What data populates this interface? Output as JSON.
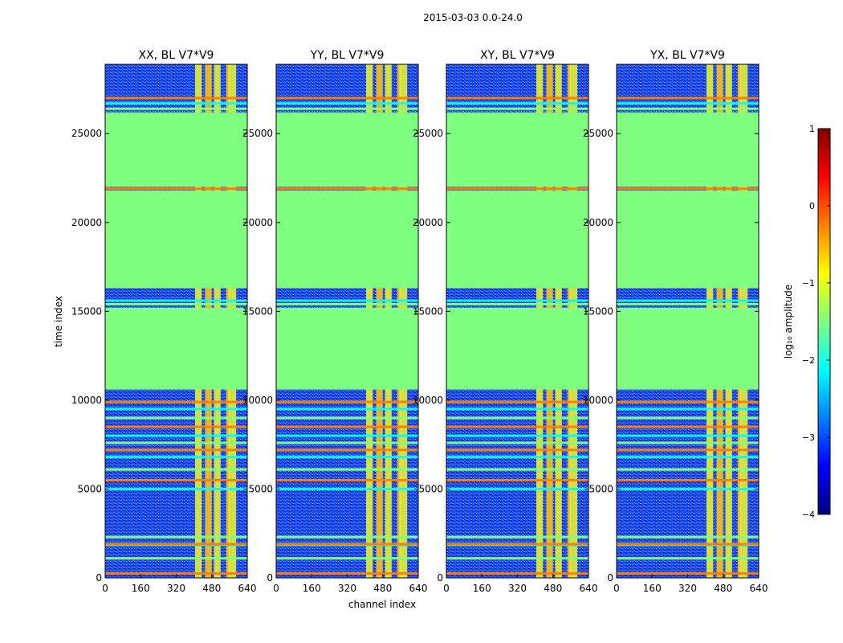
{
  "chart_data": {
    "type": "heatmap",
    "suptitle": "2015-03-03 0.0-24.0",
    "xlabel": "channel index",
    "ylabel": "time index",
    "xlim": [
      0,
      640
    ],
    "ylim": [
      0,
      28900
    ],
    "xticks": [
      "0",
      "160",
      "320",
      "480",
      "640"
    ],
    "yticks": [
      "0",
      "5000",
      "10000",
      "15000",
      "20000",
      "25000"
    ],
    "colorbar": {
      "label": "log₁₀ amplitude",
      "range": [
        -4,
        1
      ],
      "ticks": [
        "1",
        "0",
        "−1",
        "−2",
        "−3",
        "−4"
      ],
      "colormap": [
        "#00007f",
        "#0000ff",
        "#007fff",
        "#00ffff",
        "#7fff7f",
        "#ffff00",
        "#ff7f00",
        "#ff0000",
        "#7f0000"
      ]
    },
    "panels": [
      {
        "title": "XX, BL V7*V9",
        "pol": "XX"
      },
      {
        "title": "YY, BL V7*V9",
        "pol": "YY"
      },
      {
        "title": "XY, BL V7*V9",
        "pol": "XY"
      },
      {
        "title": "YX, BL V7*V9",
        "pol": "YX"
      }
    ],
    "flagged_fill_log10": -1.3,
    "flagged_time_ranges": [
      [
        10600,
        15200
      ],
      [
        16300,
        21800
      ],
      [
        22000,
        26200
      ]
    ],
    "rfi_channel_ranges": [
      [
        405,
        435
      ],
      [
        450,
        480
      ],
      [
        490,
        520
      ],
      [
        545,
        560
      ],
      [
        555,
        590
      ]
    ],
    "horizontal_rfi_time_rows": [
      250,
      1100,
      1850,
      1900,
      2300,
      5000,
      5500,
      6100,
      6800,
      7200,
      7600,
      8000,
      8500,
      9000,
      9500,
      9900,
      15400,
      15600,
      21900,
      26400,
      26700,
      27000
    ]
  }
}
